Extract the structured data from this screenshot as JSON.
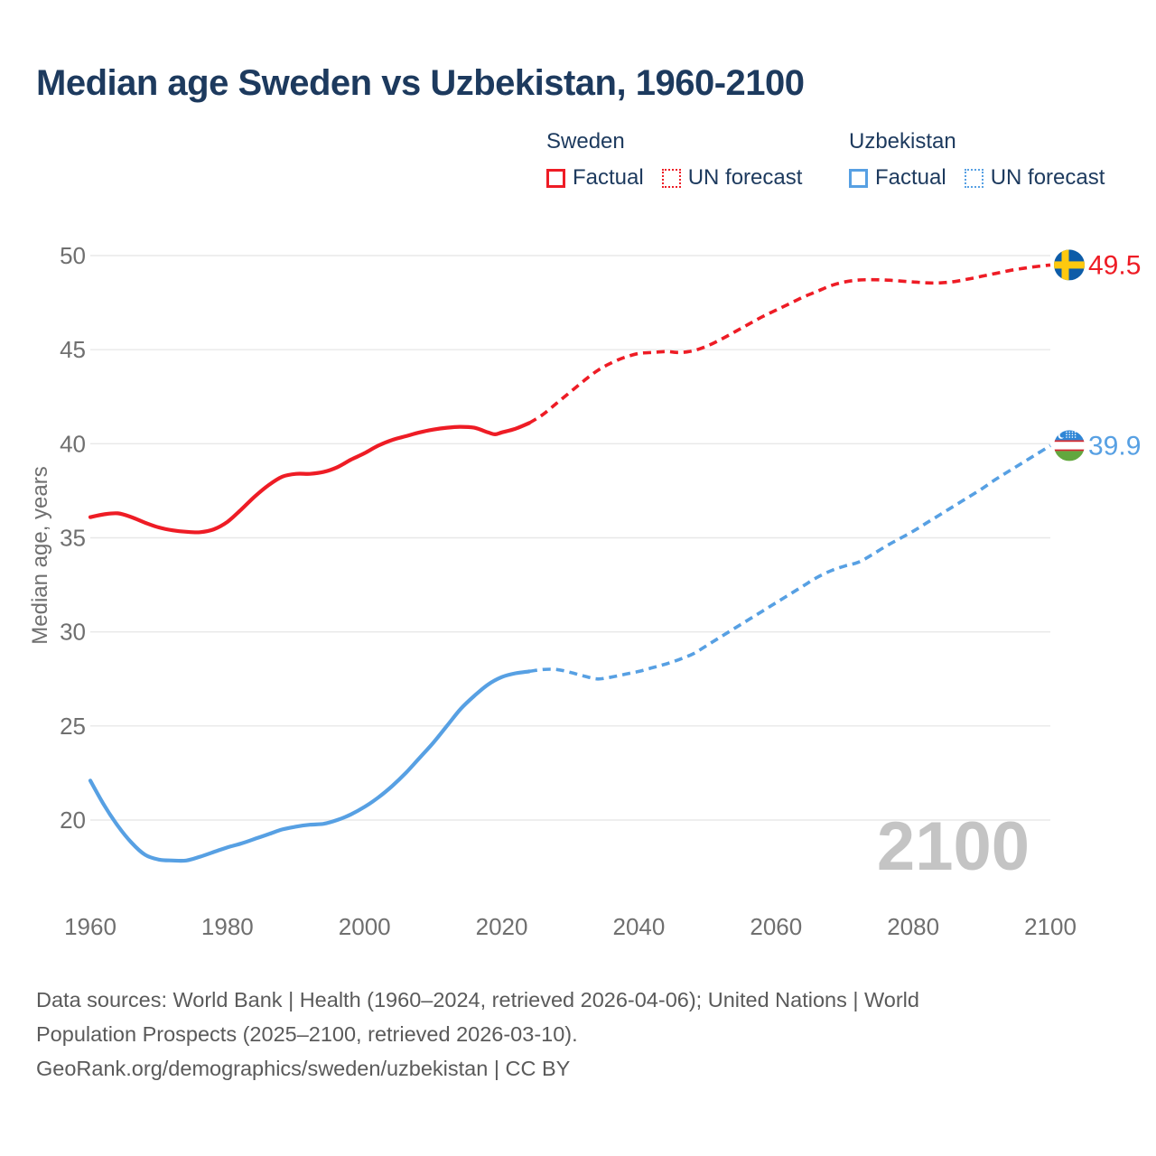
{
  "title": "Median age Sweden vs Uzbekistan, 1960-2100",
  "legend": {
    "groups": [
      {
        "title": "Sweden",
        "color": "#ee1c25",
        "items": [
          {
            "label": "Factual",
            "style": "solid"
          },
          {
            "label": "UN forecast",
            "style": "dotted"
          }
        ]
      },
      {
        "title": "Uzbekistan",
        "color": "#57a0e3",
        "items": [
          {
            "label": "Factual",
            "style": "solid"
          },
          {
            "label": "UN forecast",
            "style": "dotted"
          }
        ]
      }
    ]
  },
  "chart_data": {
    "type": "line",
    "title": "Median age Sweden vs Uzbekistan, 1960-2100",
    "xlabel": "",
    "ylabel": "Median age, years",
    "xlim": [
      1960,
      2100
    ],
    "ylim": [
      17,
      51
    ],
    "x_ticks": [
      1960,
      1980,
      2000,
      2020,
      2040,
      2060,
      2080,
      2100
    ],
    "y_ticks": [
      50,
      45,
      40,
      35,
      30,
      25,
      20
    ],
    "grid": "horizontal",
    "legend_position": "top-right",
    "watermark": "2100",
    "colors": {
      "sweden": "#ee1c25",
      "uzbekistan": "#57a0e3",
      "gridline": "#e8e8e8",
      "tick_label": "#6f6f6f",
      "watermark": "#c4c4c4"
    },
    "series": [
      {
        "name": "Sweden Factual",
        "color": "#ee1c25",
        "dash": "solid",
        "points": [
          [
            1960,
            36.1
          ],
          [
            1962,
            36.25
          ],
          [
            1964,
            36.3
          ],
          [
            1966,
            36.1
          ],
          [
            1968,
            35.8
          ],
          [
            1970,
            35.55
          ],
          [
            1972,
            35.4
          ],
          [
            1974,
            35.32
          ],
          [
            1976,
            35.3
          ],
          [
            1978,
            35.45
          ],
          [
            1980,
            35.85
          ],
          [
            1982,
            36.5
          ],
          [
            1984,
            37.2
          ],
          [
            1986,
            37.8
          ],
          [
            1988,
            38.25
          ],
          [
            1990,
            38.4
          ],
          [
            1992,
            38.4
          ],
          [
            1994,
            38.5
          ],
          [
            1996,
            38.75
          ],
          [
            1998,
            39.15
          ],
          [
            2000,
            39.5
          ],
          [
            2002,
            39.9
          ],
          [
            2004,
            40.2
          ],
          [
            2006,
            40.4
          ],
          [
            2008,
            40.6
          ],
          [
            2010,
            40.75
          ],
          [
            2012,
            40.85
          ],
          [
            2014,
            40.9
          ],
          [
            2016,
            40.85
          ],
          [
            2018,
            40.6
          ],
          [
            2019,
            40.5
          ],
          [
            2020,
            40.6
          ],
          [
            2022,
            40.8
          ],
          [
            2024,
            41.1
          ]
        ]
      },
      {
        "name": "Sweden UN forecast",
        "color": "#ee1c25",
        "dash": "dashed",
        "points": [
          [
            2024,
            41.1
          ],
          [
            2026,
            41.55
          ],
          [
            2028,
            42.15
          ],
          [
            2030,
            42.75
          ],
          [
            2032,
            43.35
          ],
          [
            2034,
            43.9
          ],
          [
            2036,
            44.3
          ],
          [
            2038,
            44.6
          ],
          [
            2040,
            44.8
          ],
          [
            2042,
            44.85
          ],
          [
            2044,
            44.9
          ],
          [
            2046,
            44.85
          ],
          [
            2048,
            44.95
          ],
          [
            2050,
            45.2
          ],
          [
            2052,
            45.55
          ],
          [
            2054,
            45.95
          ],
          [
            2056,
            46.35
          ],
          [
            2058,
            46.75
          ],
          [
            2060,
            47.1
          ],
          [
            2062,
            47.45
          ],
          [
            2064,
            47.8
          ],
          [
            2066,
            48.1
          ],
          [
            2068,
            48.4
          ],
          [
            2070,
            48.6
          ],
          [
            2072,
            48.7
          ],
          [
            2074,
            48.72
          ],
          [
            2076,
            48.7
          ],
          [
            2078,
            48.65
          ],
          [
            2080,
            48.6
          ],
          [
            2082,
            48.55
          ],
          [
            2084,
            48.55
          ],
          [
            2086,
            48.62
          ],
          [
            2088,
            48.75
          ],
          [
            2090,
            48.9
          ],
          [
            2092,
            49.05
          ],
          [
            2094,
            49.2
          ],
          [
            2096,
            49.32
          ],
          [
            2098,
            49.42
          ],
          [
            2100,
            49.5
          ]
        ]
      },
      {
        "name": "Uzbekistan Factual",
        "color": "#57a0e3",
        "dash": "solid",
        "points": [
          [
            1960,
            22.1
          ],
          [
            1962,
            20.8
          ],
          [
            1964,
            19.7
          ],
          [
            1966,
            18.8
          ],
          [
            1968,
            18.15
          ],
          [
            1970,
            17.9
          ],
          [
            1972,
            17.85
          ],
          [
            1974,
            17.85
          ],
          [
            1976,
            18.05
          ],
          [
            1978,
            18.3
          ],
          [
            1980,
            18.55
          ],
          [
            1982,
            18.75
          ],
          [
            1984,
            19.0
          ],
          [
            1986,
            19.25
          ],
          [
            1988,
            19.5
          ],
          [
            1990,
            19.65
          ],
          [
            1992,
            19.75
          ],
          [
            1994,
            19.8
          ],
          [
            1996,
            20.0
          ],
          [
            1998,
            20.3
          ],
          [
            2000,
            20.7
          ],
          [
            2002,
            21.2
          ],
          [
            2004,
            21.8
          ],
          [
            2006,
            22.5
          ],
          [
            2008,
            23.3
          ],
          [
            2010,
            24.1
          ],
          [
            2012,
            25.0
          ],
          [
            2014,
            25.9
          ],
          [
            2016,
            26.6
          ],
          [
            2018,
            27.2
          ],
          [
            2020,
            27.6
          ],
          [
            2022,
            27.8
          ],
          [
            2024,
            27.9
          ]
        ]
      },
      {
        "name": "Uzbekistan UN forecast",
        "color": "#57a0e3",
        "dash": "dashed",
        "points": [
          [
            2024,
            27.9
          ],
          [
            2026,
            28.0
          ],
          [
            2028,
            28.0
          ],
          [
            2030,
            27.85
          ],
          [
            2032,
            27.65
          ],
          [
            2034,
            27.5
          ],
          [
            2036,
            27.6
          ],
          [
            2038,
            27.75
          ],
          [
            2040,
            27.9
          ],
          [
            2042,
            28.1
          ],
          [
            2044,
            28.3
          ],
          [
            2046,
            28.55
          ],
          [
            2048,
            28.85
          ],
          [
            2050,
            29.3
          ],
          [
            2052,
            29.75
          ],
          [
            2054,
            30.2
          ],
          [
            2056,
            30.65
          ],
          [
            2058,
            31.1
          ],
          [
            2060,
            31.55
          ],
          [
            2062,
            32.0
          ],
          [
            2064,
            32.45
          ],
          [
            2066,
            32.9
          ],
          [
            2068,
            33.25
          ],
          [
            2070,
            33.5
          ],
          [
            2072,
            33.7
          ],
          [
            2074,
            34.1
          ],
          [
            2076,
            34.55
          ],
          [
            2078,
            34.95
          ],
          [
            2080,
            35.35
          ],
          [
            2082,
            35.8
          ],
          [
            2084,
            36.25
          ],
          [
            2086,
            36.7
          ],
          [
            2088,
            37.15
          ],
          [
            2090,
            37.6
          ],
          [
            2092,
            38.1
          ],
          [
            2094,
            38.55
          ],
          [
            2096,
            39.0
          ],
          [
            2098,
            39.45
          ],
          [
            2100,
            39.9
          ]
        ]
      }
    ],
    "end_labels": [
      {
        "series": "Sweden",
        "value": "49.5",
        "color": "#ee1c25",
        "flag": "sweden"
      },
      {
        "series": "Uzbekistan",
        "value": "39.9",
        "color": "#57a0e3",
        "flag": "uzbekistan"
      }
    ]
  },
  "footer": {
    "lines": [
      "Data sources: World Bank | Health (1960–2024, retrieved 2026-04-06); United Nations | World",
      "Population Prospects (2025–2100, retrieved 2026-03-10).",
      "GeoRank.org/demographics/sweden/uzbekistan | CC BY"
    ]
  }
}
